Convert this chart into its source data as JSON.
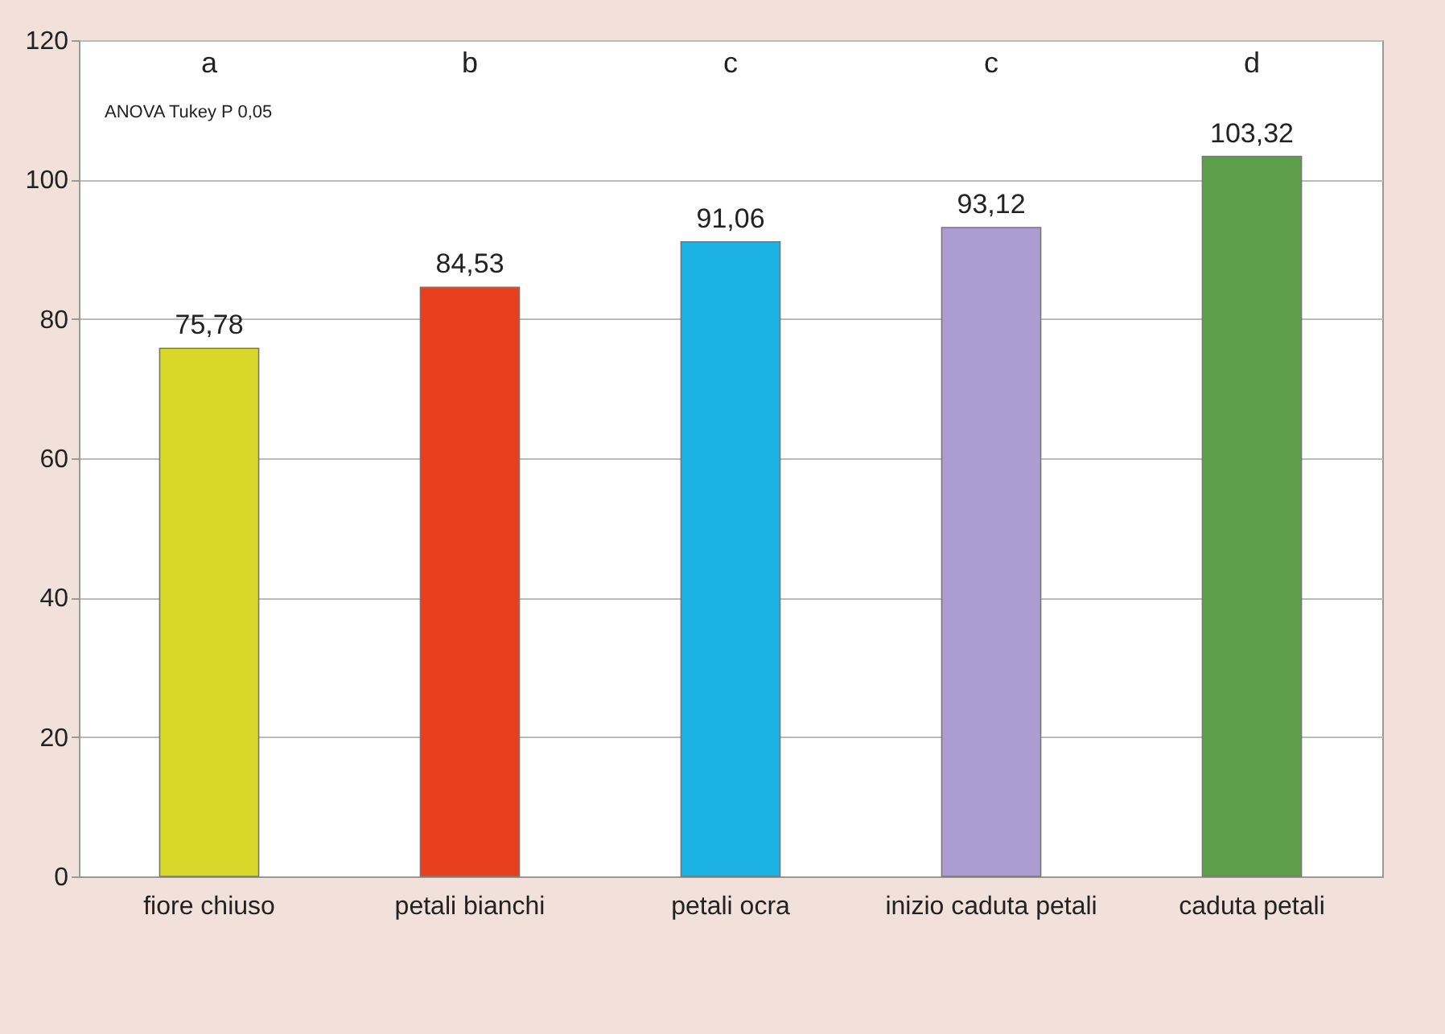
{
  "chart_data": {
    "type": "bar",
    "categories": [
      "fiore chiuso",
      "petali bianchi",
      "petali ocra",
      "inizio caduta petali",
      "caduta petali"
    ],
    "values": [
      75.78,
      84.53,
      91.06,
      93.12,
      103.32
    ],
    "colors": [
      "#d8d82a",
      "#e8401f",
      "#1cb2e4",
      "#ab9dd2",
      "#5e9f4c"
    ],
    "value_labels": [
      "75,78",
      "84,53",
      "91,06",
      "93,12",
      "103,32"
    ],
    "ylim": [
      0,
      120
    ],
    "yticks": [
      0,
      20,
      40,
      60,
      80,
      100,
      120
    ],
    "grid": "y",
    "annotations": [
      "a",
      "b",
      "c",
      "c",
      "d",
      "ANOVA Tukey P 0,05"
    ]
  }
}
